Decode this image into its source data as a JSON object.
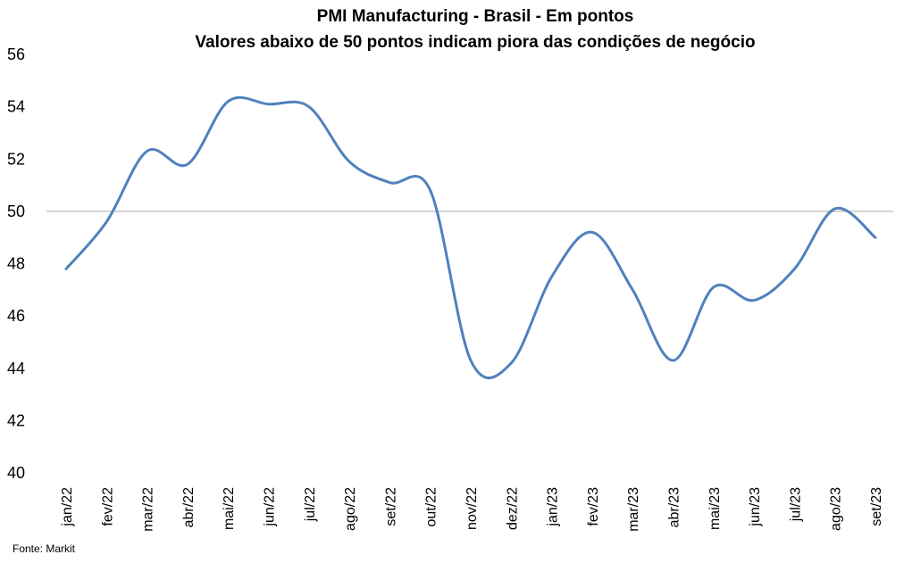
{
  "chart_data": {
    "type": "line",
    "title": "PMI Manufacturing - Brasil - Em pontos",
    "subtitle": "Valores abaixo de 50 pontos indicam piora das condições de negócio",
    "source": "Fonte: Markit",
    "categories": [
      "jan/22",
      "fev/22",
      "mar/22",
      "abr/22",
      "mai/22",
      "jun/22",
      "jul/22",
      "ago/22",
      "set/22",
      "out/22",
      "nov/22",
      "dez/22",
      "jan/23",
      "fev/23",
      "mar/23",
      "abr/23",
      "mai/23",
      "jun/23",
      "jul/23",
      "ago/23",
      "set/23"
    ],
    "series": [
      {
        "values": [
          47.8,
          49.6,
          52.3,
          51.8,
          54.2,
          54.1,
          54.0,
          51.9,
          51.1,
          50.8,
          44.3,
          44.2,
          47.5,
          49.2,
          47.0,
          44.3,
          47.1,
          46.6,
          47.8,
          50.1,
          49.0
        ]
      }
    ],
    "ylim": [
      40,
      56
    ],
    "yticks": [
      "40",
      "42",
      "44",
      "46",
      "48",
      "50",
      "52",
      "54",
      "56"
    ],
    "reference_line": 50,
    "grid": false,
    "legend": "none",
    "colors": {
      "series": "#4f81bd",
      "reference": "#a6a6a6"
    }
  }
}
